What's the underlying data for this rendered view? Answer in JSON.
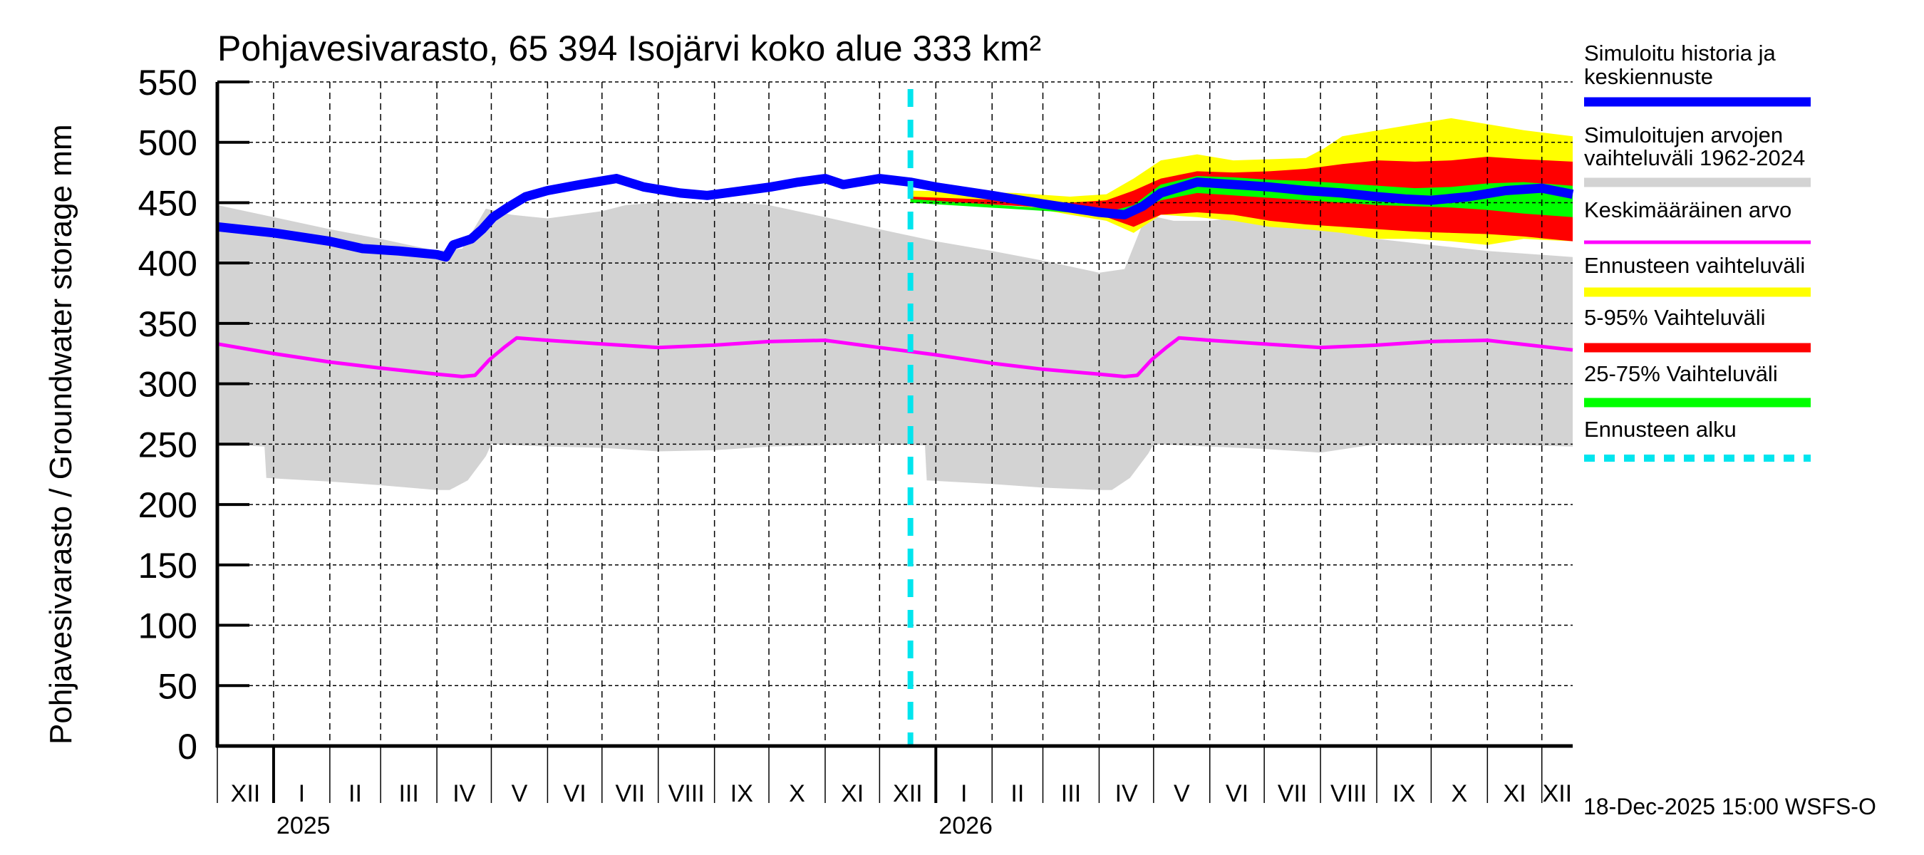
{
  "chart_data": {
    "type": "area",
    "title": "Pohjavesivarasto, 65 394 Isojärvi koko alue 333 km²",
    "ylabel": "Pohjavesivarasto / Groundwater storage   mm",
    "xlabel": "",
    "ylim": [
      0,
      550
    ],
    "yticks": [
      0,
      50,
      100,
      150,
      200,
      250,
      300,
      350,
      400,
      450,
      500,
      550
    ],
    "x_unit": "days since 1 Dec 2024",
    "xlim": [
      0,
      747
    ],
    "grid": true,
    "month_ticks": [
      {
        "day": 0,
        "label": "XII"
      },
      {
        "day": 31,
        "label": "I"
      },
      {
        "day": 62,
        "label": "II"
      },
      {
        "day": 90,
        "label": "III"
      },
      {
        "day": 121,
        "label": "IV"
      },
      {
        "day": 151,
        "label": "V"
      },
      {
        "day": 182,
        "label": "VI"
      },
      {
        "day": 212,
        "label": "VII"
      },
      {
        "day": 243,
        "label": "VIII"
      },
      {
        "day": 274,
        "label": "IX"
      },
      {
        "day": 304,
        "label": "X"
      },
      {
        "day": 335,
        "label": "XI"
      },
      {
        "day": 365,
        "label": "XII"
      },
      {
        "day": 396,
        "label": "I"
      },
      {
        "day": 427,
        "label": "II"
      },
      {
        "day": 455,
        "label": "III"
      },
      {
        "day": 486,
        "label": "IV"
      },
      {
        "day": 516,
        "label": "V"
      },
      {
        "day": 547,
        "label": "VI"
      },
      {
        "day": 577,
        "label": "VII"
      },
      {
        "day": 608,
        "label": "VIII"
      },
      {
        "day": 639,
        "label": "IX"
      },
      {
        "day": 669,
        "label": "X"
      },
      {
        "day": 700,
        "label": "XI"
      },
      {
        "day": 730,
        "label": "XII"
      }
    ],
    "year_ticks": [
      {
        "day": 31,
        "label": "2025"
      },
      {
        "day": 396,
        "label": "2026"
      }
    ],
    "forecast_start_day": 382,
    "timestamp": "18-Dec-2025 15:00 WSFS-O",
    "legend_position": "right",
    "legend": [
      {
        "label": "Simuloitu historia ja keskiennuste",
        "color": "#0000ff",
        "style": "thick"
      },
      {
        "label": "Simuloitujen arvojen vaihteluväli 1962-2024",
        "color": "#d3d3d3",
        "style": "thick"
      },
      {
        "label": "Keskimääräinen arvo",
        "color": "#ff00ff",
        "style": "thin"
      },
      {
        "label": "Ennusteen vaihteluväli",
        "color": "#ffff00",
        "style": "thick"
      },
      {
        "label": "5-95% Vaihteluväli",
        "color": "#ff0000",
        "style": "thick"
      },
      {
        "label": "25-75% Vaihteluväli",
        "color": "#00ff00",
        "style": "thick"
      },
      {
        "label": "Ennusteen alku",
        "color": "#00e5ee",
        "style": "dotted"
      }
    ],
    "series": [
      {
        "name": "Simuloitujen arvojen vaihteluväli 1962-2024 (max)",
        "color": "#d3d3d3",
        "x": [
          0,
          31,
          62,
          90,
          121,
          135,
          148,
          162,
          182,
          212,
          225,
          243,
          274,
          290,
          304,
          335,
          365,
          396,
          427,
          455,
          486,
          500,
          512,
          527,
          547,
          577,
          608,
          639,
          669,
          700,
          747
        ],
        "y": [
          448,
          438,
          428,
          420,
          410,
          412,
          445,
          440,
          437,
          443,
          448,
          450,
          450,
          450,
          448,
          438,
          428,
          418,
          410,
          402,
          392,
          395,
          440,
          435,
          435,
          440,
          430,
          420,
          415,
          410,
          405
        ]
      },
      {
        "name": "Simuloitujen arvojen vaihteluväli 1962-2024 (min)",
        "color": "#d3d3d3",
        "x": [
          0,
          26,
          27,
          62,
          90,
          121,
          128,
          138,
          148,
          151,
          182,
          212,
          243,
          274,
          304,
          335,
          365,
          390,
          391,
          427,
          455,
          486,
          493,
          503,
          513,
          516,
          547,
          577,
          608,
          639,
          669,
          700,
          747
        ],
        "y": [
          250,
          248,
          222,
          219,
          216,
          212,
          212,
          220,
          240,
          250,
          248,
          247,
          244,
          245,
          248,
          249,
          250,
          249,
          220,
          217,
          214,
          212,
          212,
          222,
          242,
          250,
          248,
          246,
          243,
          250,
          249,
          250,
          248
        ]
      },
      {
        "name": "Keskimääräinen arvo",
        "color": "#ff00ff",
        "x": [
          0,
          31,
          62,
          90,
          121,
          135,
          142,
          150,
          158,
          165,
          182,
          212,
          243,
          274,
          304,
          335,
          365,
          396,
          427,
          455,
          486,
          500,
          507,
          515,
          523,
          530,
          547,
          577,
          608,
          639,
          669,
          700,
          747
        ],
        "y": [
          333,
          325,
          318,
          313,
          308,
          306,
          307,
          320,
          330,
          338,
          336,
          333,
          330,
          332,
          335,
          336,
          330,
          324,
          317,
          312,
          308,
          306,
          307,
          320,
          330,
          338,
          336,
          333,
          330,
          332,
          335,
          336,
          328
        ]
      },
      {
        "name": "Simuloitu historia ja keskiennuste",
        "color": "#0000ff",
        "x": [
          0,
          31,
          62,
          80,
          100,
          121,
          126,
          130,
          140,
          146,
          152,
          160,
          170,
          182,
          200,
          212,
          220,
          235,
          255,
          270,
          290,
          305,
          320,
          335,
          345,
          365,
          382,
          396,
          427,
          455,
          486,
          500,
          510,
          520,
          540,
          560,
          580,
          600,
          620,
          639,
          655,
          669,
          690,
          710,
          730,
          747
        ],
        "y": [
          430,
          425,
          418,
          412,
          410,
          407,
          405,
          415,
          420,
          428,
          438,
          446,
          455,
          460,
          465,
          468,
          470,
          463,
          458,
          456,
          460,
          463,
          467,
          470,
          465,
          470,
          467,
          463,
          456,
          449,
          442,
          440,
          447,
          458,
          467,
          465,
          463,
          460,
          458,
          455,
          453,
          452,
          455,
          460,
          462,
          457
        ]
      },
      {
        "name": "Ennusteen vaihteluväli (max)",
        "color": "#ffff00",
        "x": [
          382,
          440,
          470,
          490,
          505,
          520,
          540,
          560,
          580,
          600,
          610,
          620,
          640,
          660,
          680,
          700,
          720,
          747
        ],
        "y": [
          460,
          458,
          455,
          457,
          470,
          485,
          490,
          485,
          486,
          487,
          495,
          505,
          510,
          515,
          520,
          515,
          510,
          505
        ]
      },
      {
        "name": "Ennusteen vaihteluväli (min)",
        "color": "#ffff00",
        "x": [
          382,
          440,
          470,
          490,
          505,
          510,
          520,
          540,
          560,
          580,
          600,
          620,
          640,
          660,
          680,
          700,
          720,
          747
        ],
        "y": [
          450,
          448,
          440,
          435,
          425,
          430,
          440,
          438,
          435,
          430,
          428,
          425,
          420,
          420,
          418,
          415,
          420,
          418
        ]
      },
      {
        "name": "5-95% Vaihteluväli (max)",
        "color": "#ff0000",
        "x": [
          382,
          470,
          490,
          505,
          520,
          540,
          560,
          580,
          600,
          620,
          640,
          660,
          680,
          700,
          720,
          747
        ],
        "y": [
          455,
          450,
          452,
          460,
          470,
          476,
          475,
          476,
          478,
          482,
          485,
          484,
          485,
          488,
          486,
          484
        ]
      },
      {
        "name": "5-95% Vaihteluväli (min)",
        "color": "#ff0000",
        "x": [
          382,
          470,
          490,
          505,
          520,
          540,
          560,
          580,
          600,
          620,
          640,
          660,
          680,
          700,
          720,
          747
        ],
        "y": [
          452,
          445,
          438,
          430,
          440,
          442,
          440,
          435,
          432,
          430,
          428,
          426,
          425,
          424,
          422,
          418
        ]
      },
      {
        "name": "25-75% Vaihteluväli (max)",
        "color": "#00ff00",
        "x": [
          382,
          490,
          505,
          520,
          540,
          560,
          580,
          600,
          620,
          640,
          660,
          680,
          700,
          720,
          747
        ],
        "y": [
          453,
          442,
          448,
          465,
          472,
          471,
          469,
          468,
          466,
          464,
          462,
          463,
          466,
          467,
          464
        ]
      },
      {
        "name": "25-75% Vaihteluväli (min)",
        "color": "#00ff00",
        "x": [
          382,
          490,
          505,
          520,
          540,
          560,
          580,
          600,
          620,
          640,
          660,
          680,
          700,
          720,
          747
        ],
        "y": [
          450,
          440,
          442,
          452,
          458,
          456,
          454,
          452,
          450,
          448,
          447,
          446,
          444,
          441,
          438
        ]
      }
    ]
  }
}
